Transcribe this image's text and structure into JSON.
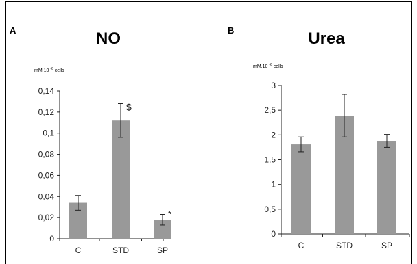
{
  "figure": {
    "panels": [
      {
        "panel_label": "A",
        "title": "NO",
        "unit_prefix": "mM.10",
        "unit_exponent": "-6",
        "unit_suffix": " cells"
      },
      {
        "panel_label": "B",
        "title": "Urea",
        "unit_prefix": "mM.10",
        "unit_exponent": "-6",
        "unit_suffix": " cells"
      }
    ]
  },
  "chart_data": [
    {
      "type": "bar",
      "title": "NO",
      "ylabel": "mM.10-6 cells",
      "categories": [
        "C",
        "STD",
        "SP"
      ],
      "values": [
        0.034,
        0.112,
        0.018
      ],
      "error": [
        0.007,
        0.016,
        0.005
      ],
      "annotations": [
        "",
        "$",
        "*"
      ],
      "ylim": [
        0,
        0.14
      ],
      "yticks": [
        "0",
        "0,02",
        "0,04",
        "0,06",
        "0,08",
        "0,1",
        "0,12",
        "0,14"
      ],
      "bar_color": "#999999",
      "grid": false
    },
    {
      "type": "bar",
      "title": "Urea",
      "ylabel": "mM.10-6 cells",
      "categories": [
        "C",
        "STD",
        "SP"
      ],
      "values": [
        1.81,
        2.39,
        1.88
      ],
      "error": [
        0.15,
        0.43,
        0.13
      ],
      "annotations": [
        "",
        "",
        ""
      ],
      "ylim": [
        0,
        3
      ],
      "yticks": [
        "0",
        "0,5",
        "1",
        "1,5",
        "2",
        "2,5",
        "3"
      ],
      "bar_color": "#999999",
      "grid": false
    }
  ]
}
